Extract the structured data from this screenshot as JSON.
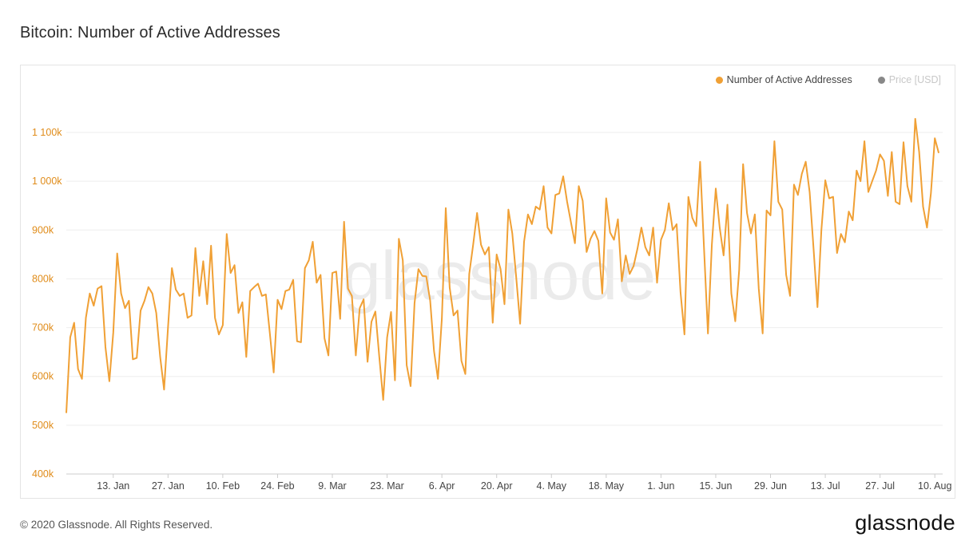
{
  "page": {
    "title": "Bitcoin: Number of Active Addresses",
    "footer": "© 2020 Glassnode. All Rights Reserved.",
    "logo": "glassnode",
    "watermark": "glassnode"
  },
  "colors": {
    "series": "#f0a035",
    "axis_label": "#e08c1a",
    "grid": "#eeeeee",
    "price_legend": "#888888",
    "price_legend_text": "#c8c8c8"
  },
  "chart_data": {
    "type": "line",
    "title": "Bitcoin: Number of Active Addresses",
    "xlabel": "",
    "ylabel": "",
    "ylim": [
      400000,
      1150000
    ],
    "grid": true,
    "legend_position": "top-right",
    "y_ticks": [
      {
        "value": 400000,
        "label": "400k"
      },
      {
        "value": 500000,
        "label": "500k"
      },
      {
        "value": 600000,
        "label": "600k"
      },
      {
        "value": 700000,
        "label": "700k"
      },
      {
        "value": 800000,
        "label": "800k"
      },
      {
        "value": 900000,
        "label": "900k"
      },
      {
        "value": 1000000,
        "label": "1 000k"
      },
      {
        "value": 1100000,
        "label": "1 100k"
      }
    ],
    "x_ticks": [
      {
        "date": "2020-01-13",
        "label": "13. Jan"
      },
      {
        "date": "2020-01-27",
        "label": "27. Jan"
      },
      {
        "date": "2020-02-10",
        "label": "10. Feb"
      },
      {
        "date": "2020-02-24",
        "label": "24. Feb"
      },
      {
        "date": "2020-03-09",
        "label": "9. Mar"
      },
      {
        "date": "2020-03-23",
        "label": "23. Mar"
      },
      {
        "date": "2020-04-06",
        "label": "6. Apr"
      },
      {
        "date": "2020-04-20",
        "label": "20. Apr"
      },
      {
        "date": "2020-05-04",
        "label": "4. May"
      },
      {
        "date": "2020-05-18",
        "label": "18. May"
      },
      {
        "date": "2020-06-01",
        "label": "1. Jun"
      },
      {
        "date": "2020-06-15",
        "label": "15. Jun"
      },
      {
        "date": "2020-06-29",
        "label": "29. Jun"
      },
      {
        "date": "2020-07-13",
        "label": "13. Jul"
      },
      {
        "date": "2020-07-27",
        "label": "27. Jul"
      },
      {
        "date": "2020-08-10",
        "label": "10. Aug"
      }
    ],
    "x_start": "2020-01-01",
    "x_end": "2020-08-12",
    "series": [
      {
        "name": "Number of Active Addresses",
        "color": "#f0a035",
        "values": [
          525000,
          680000,
          710000,
          615000,
          595000,
          720000,
          770000,
          745000,
          780000,
          785000,
          660000,
          590000,
          690000,
          852000,
          770000,
          740000,
          755000,
          635000,
          638000,
          735000,
          755000,
          783000,
          770000,
          730000,
          640000,
          573000,
          700000,
          822000,
          778000,
          765000,
          770000,
          720000,
          725000,
          863000,
          765000,
          836000,
          748000,
          868000,
          720000,
          686000,
          705000,
          892000,
          812000,
          828000,
          730000,
          752000,
          640000,
          775000,
          783000,
          790000,
          765000,
          768000,
          690000,
          608000,
          757000,
          738000,
          775000,
          778000,
          798000,
          672000,
          670000,
          822000,
          838000,
          876000,
          792000,
          808000,
          678000,
          643000,
          812000,
          815000,
          718000,
          917000,
          780000,
          765000,
          643000,
          740000,
          758000,
          630000,
          712000,
          733000,
          640000,
          552000,
          680000,
          732000,
          592000,
          882000,
          838000,
          623000,
          580000,
          750000,
          820000,
          806000,
          805000,
          755000,
          652000,
          595000,
          718000,
          945000,
          782000,
          725000,
          735000,
          632000,
          605000,
          810000,
          870000,
          935000,
          870000,
          850000,
          865000,
          710000,
          850000,
          820000,
          748000,
          942000,
          893000,
          803000,
          708000,
          876000,
          932000,
          912000,
          948000,
          942000,
          990000,
          905000,
          893000,
          972000,
          975000,
          1010000,
          958000,
          915000,
          873000,
          990000,
          960000,
          855000,
          882000,
          898000,
          878000,
          770000,
          965000,
          895000,
          880000,
          922000,
          795000,
          848000,
          810000,
          826000,
          862000,
          905000,
          865000,
          848000,
          905000,
          792000,
          880000,
          900000,
          955000,
          900000,
          912000,
          772000,
          686000,
          968000,
          925000,
          908000,
          1040000,
          862000,
          688000,
          870000,
          985000,
          905000,
          848000,
          952000,
          770000,
          713000,
          818000,
          1035000,
          935000,
          893000,
          932000,
          780000,
          688000,
          940000,
          930000,
          1082000,
          958000,
          942000,
          808000,
          765000,
          993000,
          972000,
          1015000,
          1040000,
          978000,
          862000,
          742000,
          900000,
          1002000,
          965000,
          968000,
          853000,
          892000,
          875000,
          938000,
          920000,
          1022000,
          1000000,
          1082000,
          978000,
          1000000,
          1022000,
          1055000,
          1042000,
          970000,
          1060000,
          958000,
          953000,
          1080000,
          990000,
          958000,
          1128000,
          1060000,
          948000,
          905000,
          975000,
          1088000,
          1058000
        ]
      },
      {
        "name": "Price [USD]",
        "color": "#888888",
        "values": []
      }
    ]
  }
}
